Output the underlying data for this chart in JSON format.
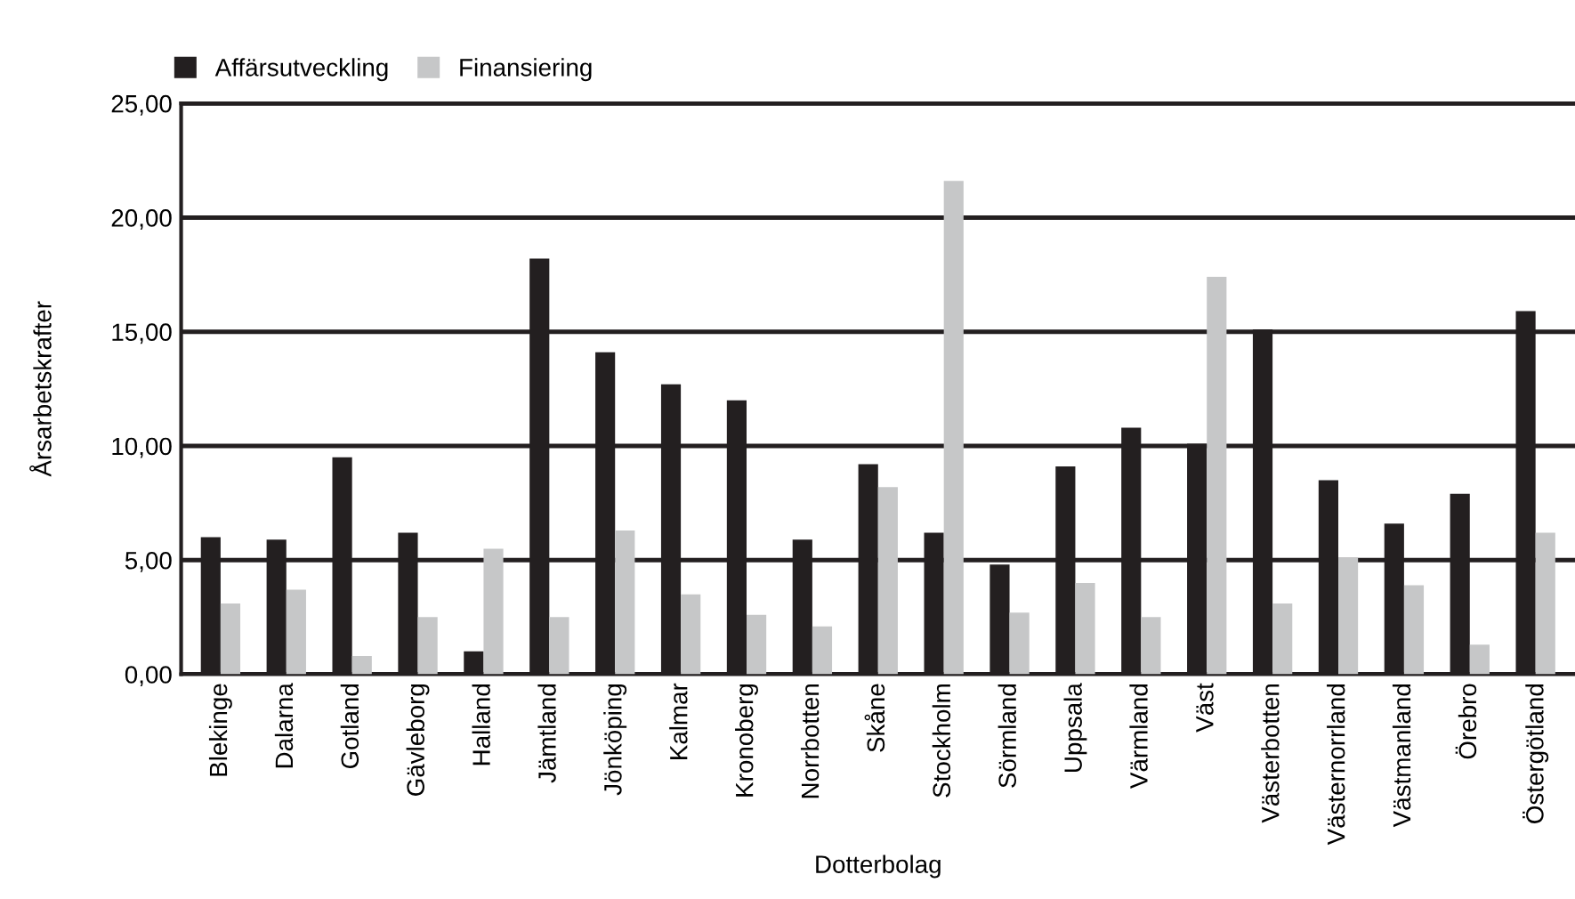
{
  "chart_data": {
    "type": "bar",
    "xlabel": "Dotterbolag",
    "ylabel": "Årsarbetskrafter",
    "categories": [
      "Blekinge",
      "Dalarna",
      "Gotland",
      "Gävleborg",
      "Halland",
      "Jämtland",
      "Jönköping",
      "Kalmar",
      "Kronoberg",
      "Norrbotten",
      "Skåne",
      "Stockholm",
      "Sörmland",
      "Uppsala",
      "Värmland",
      "Väst",
      "Västerbotten",
      "Västernorrland",
      "Västmanland",
      "Örebro",
      "Östergötland"
    ],
    "series": [
      {
        "name": "Affärsutveckling",
        "color": "#231f20",
        "values": [
          6.0,
          5.9,
          9.5,
          6.2,
          1.0,
          18.2,
          14.1,
          12.7,
          12.0,
          5.9,
          9.2,
          6.2,
          4.8,
          9.1,
          10.8,
          10.1,
          15.1,
          8.5,
          6.6,
          7.9,
          15.9
        ]
      },
      {
        "name": "Finansiering",
        "color": "#c6c7c8",
        "values": [
          3.1,
          3.7,
          0.8,
          2.5,
          5.5,
          2.5,
          6.3,
          3.5,
          2.6,
          2.1,
          8.2,
          21.6,
          2.7,
          4.0,
          2.5,
          17.4,
          3.1,
          5.1,
          3.9,
          1.3,
          6.2
        ]
      }
    ],
    "ylim": [
      0,
      25
    ],
    "yticks": [
      {
        "value": 0,
        "label": "0,00"
      },
      {
        "value": 5,
        "label": "5,00"
      },
      {
        "value": 10,
        "label": "10,00"
      },
      {
        "value": 15,
        "label": "15,00"
      },
      {
        "value": 20,
        "label": "20,00"
      },
      {
        "value": 25,
        "label": "25,00"
      }
    ],
    "grid": "y",
    "legend": "top left"
  }
}
